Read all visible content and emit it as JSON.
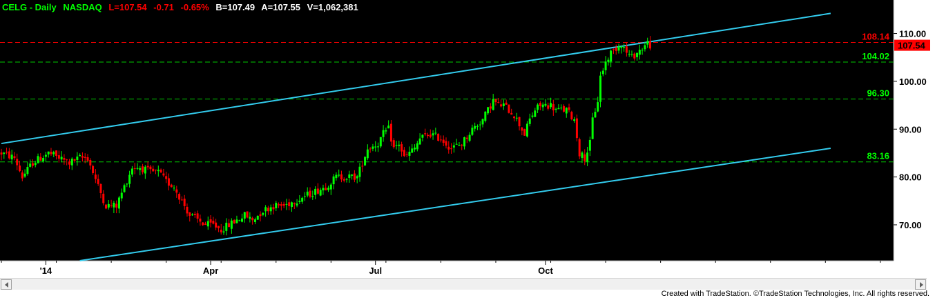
{
  "header": {
    "title": "CELG - Daily",
    "exchange": "NASDAQ",
    "last": "L=107.54",
    "change": "-0.71",
    "pct_change": "-0.65%",
    "bid": "B=107.49",
    "ask": "A=107.55",
    "volume": "V=1,062,381"
  },
  "footer": {
    "credit": "Created with TradeStation. ©TradeStation Technologies, Inc. All rights reserved."
  },
  "colors": {
    "background": "#000000",
    "up_candle": "#00ff00",
    "down_candle": "#ff0000",
    "channel": "#33ccee",
    "resistance_line": "#ff0000",
    "support_lines": "#00cc00",
    "axis_text": "#000000",
    "axis_bg": "#ffffff"
  },
  "chart_data": {
    "type": "candlestick",
    "ylim": [
      62.5,
      117
    ],
    "y_ticks": [
      70,
      80,
      90,
      100,
      110
    ],
    "y_tick_labels": [
      "70.00",
      "80.00",
      "90.00",
      "100.00",
      "110.00"
    ],
    "x_range": [
      0,
      340
    ],
    "x_ticks": [
      {
        "label": "'14",
        "x": 17
      },
      {
        "label": "Apr",
        "x": 80
      },
      {
        "label": "Jul",
        "x": 143
      },
      {
        "label": "Oct",
        "x": 208
      }
    ],
    "last_price": 107.54,
    "last_price_label": "107.54",
    "horizontal_levels": [
      {
        "value": 108.14,
        "label": "108.14",
        "color": "red"
      },
      {
        "value": 104.02,
        "label": "104.02",
        "color": "green"
      },
      {
        "value": 96.3,
        "label": "96.30",
        "color": "green"
      },
      {
        "value": 83.16,
        "label": "83.16",
        "color": "green"
      }
    ],
    "channel_lines": [
      {
        "x1": 0,
        "y1": 87.0,
        "x2": 317,
        "y2": 114.2
      },
      {
        "x1": 30,
        "y1": 62.5,
        "x2": 317,
        "y2": 86.0
      }
    ],
    "price_path": [
      [
        0,
        85
      ],
      [
        5,
        84
      ],
      [
        8,
        80
      ],
      [
        12,
        83
      ],
      [
        18,
        85
      ],
      [
        22,
        84
      ],
      [
        26,
        83
      ],
      [
        30,
        84
      ],
      [
        33,
        84
      ],
      [
        35,
        81
      ],
      [
        37,
        78
      ],
      [
        40,
        74
      ],
      [
        44,
        74
      ],
      [
        47,
        78
      ],
      [
        50,
        82
      ],
      [
        53,
        82
      ],
      [
        57,
        81
      ],
      [
        60,
        81
      ],
      [
        63,
        79
      ],
      [
        66,
        78
      ],
      [
        69,
        75
      ],
      [
        72,
        72
      ],
      [
        75,
        71
      ],
      [
        78,
        70
      ],
      [
        81,
        70
      ],
      [
        84,
        69
      ],
      [
        87,
        70
      ],
      [
        90,
        71
      ],
      [
        93,
        72
      ],
      [
        96,
        71
      ],
      [
        100,
        73
      ],
      [
        104,
        74
      ],
      [
        108,
        74
      ],
      [
        112,
        75
      ],
      [
        116,
        76
      ],
      [
        120,
        77
      ],
      [
        124,
        78
      ],
      [
        128,
        80
      ],
      [
        132,
        80
      ],
      [
        136,
        80
      ],
      [
        138,
        83
      ],
      [
        140,
        86
      ],
      [
        144,
        87
      ],
      [
        146,
        89
      ],
      [
        148,
        90
      ],
      [
        150,
        86
      ],
      [
        152,
        87
      ],
      [
        154,
        84
      ],
      [
        156,
        85
      ],
      [
        158,
        86
      ],
      [
        160,
        88
      ],
      [
        164,
        89
      ],
      [
        168,
        88
      ],
      [
        172,
        86
      ],
      [
        176,
        87
      ],
      [
        180,
        90
      ],
      [
        184,
        92
      ],
      [
        186,
        94
      ],
      [
        188,
        96
      ],
      [
        190,
        95
      ],
      [
        192,
        95
      ],
      [
        194,
        94
      ],
      [
        196,
        93
      ],
      [
        198,
        91
      ],
      [
        200,
        89
      ],
      [
        202,
        92
      ],
      [
        204,
        94
      ],
      [
        206,
        95
      ],
      [
        208,
        95
      ],
      [
        210,
        95
      ],
      [
        212,
        94
      ],
      [
        216,
        94
      ],
      [
        219,
        92
      ],
      [
        221,
        85
      ],
      [
        223,
        84
      ],
      [
        225,
        87
      ],
      [
        226,
        92
      ],
      [
        228,
        96
      ],
      [
        229,
        101
      ],
      [
        231,
        104
      ],
      [
        233,
        106
      ],
      [
        235,
        107
      ],
      [
        237,
        108
      ],
      [
        239,
        106
      ],
      [
        241,
        105
      ],
      [
        243,
        106
      ],
      [
        245,
        107
      ],
      [
        247,
        108
      ],
      [
        248,
        107.54
      ]
    ]
  }
}
